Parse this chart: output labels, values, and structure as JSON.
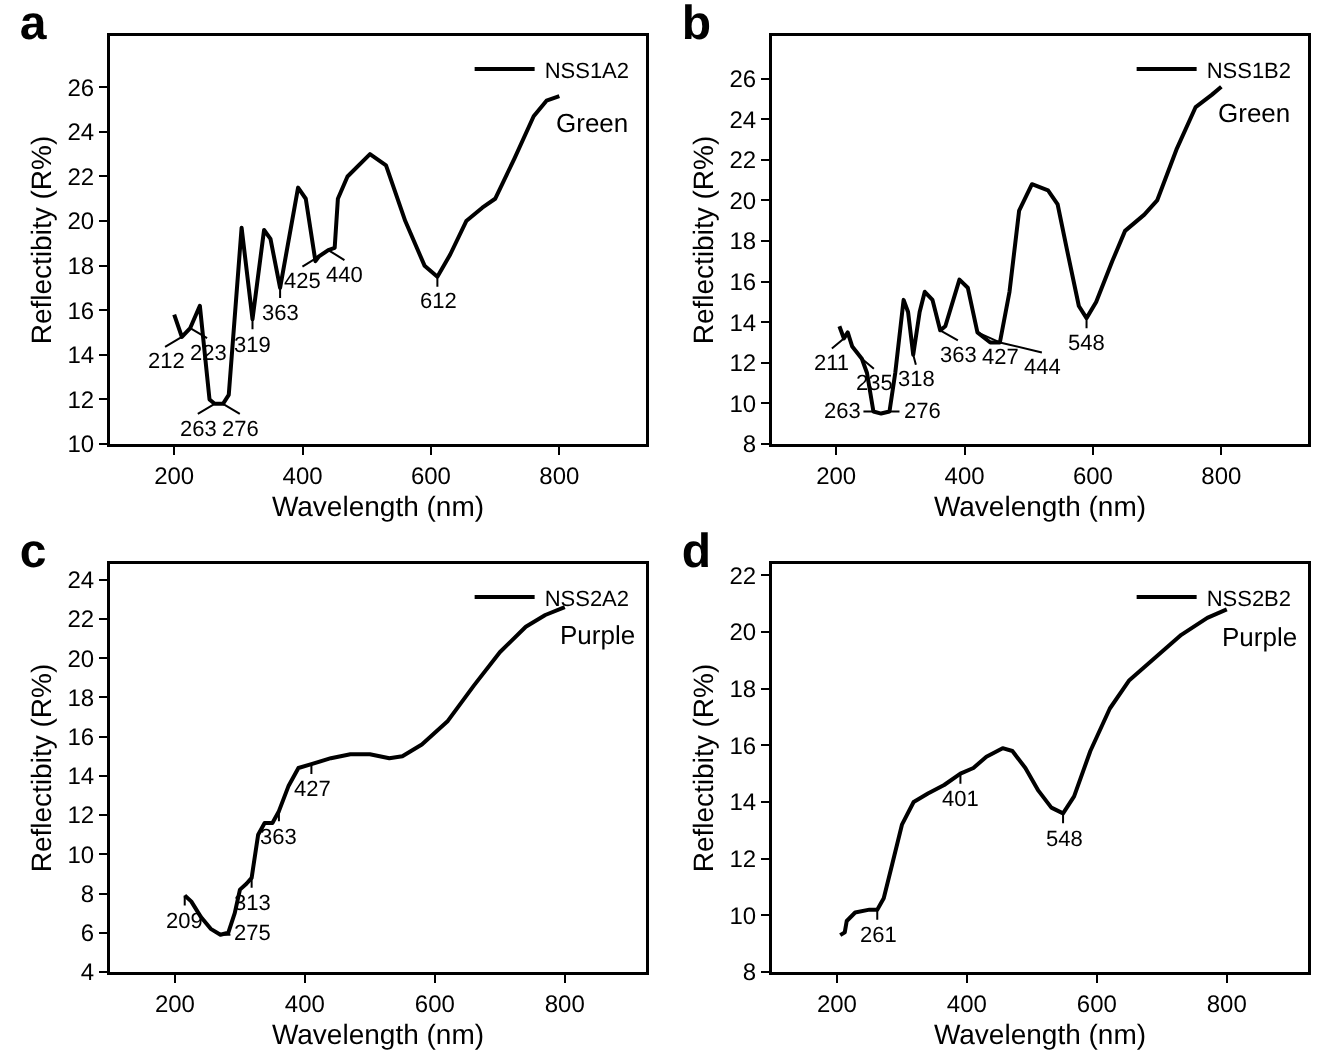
{
  "chart_data": [
    {
      "type": "line",
      "title": "a",
      "xlabel": "Wavelength (nm)",
      "ylabel": "Reflectibity (R%)",
      "legend": "top right",
      "marker": "none",
      "line_style": "solid",
      "grid": false,
      "xlim": [
        100,
        935
      ],
      "xticks": [
        200,
        400,
        600,
        800
      ],
      "ylim": [
        10,
        28.3
      ],
      "yticks": [
        10,
        12,
        14,
        16,
        18,
        20,
        22,
        24,
        26
      ],
      "x": [
        200,
        212,
        225,
        240,
        255,
        263,
        276,
        285,
        305,
        322,
        340,
        350,
        365,
        393,
        405,
        420,
        425,
        440,
        450,
        455,
        470,
        505,
        530,
        560,
        590,
        610,
        630,
        655,
        680,
        700,
        730,
        760,
        780,
        800
      ],
      "series": [
        {
          "name": "NSS1A2",
          "color": "#000000",
          "values": [
            15.8,
            14.8,
            15.2,
            16.2,
            12.0,
            11.8,
            11.8,
            12.2,
            19.7,
            15.6,
            19.6,
            19.2,
            17.0,
            21.5,
            21.0,
            18.2,
            18.4,
            18.7,
            18.8,
            21.0,
            22.0,
            23.0,
            22.5,
            20.0,
            18.0,
            17.5,
            18.5,
            20.0,
            20.6,
            21.0,
            22.8,
            24.7,
            25.4,
            25.6
          ]
        }
      ],
      "annotations": [
        {
          "text": "212",
          "x": 212,
          "y": 14.8
        },
        {
          "text": "223",
          "x": 225,
          "y": 15.2
        },
        {
          "text": "263",
          "x": 263,
          "y": 11.8
        },
        {
          "text": "276",
          "x": 276,
          "y": 11.8
        },
        {
          "text": "319",
          "x": 322,
          "y": 15.6
        },
        {
          "text": "363",
          "x": 365,
          "y": 17.0
        },
        {
          "text": "425",
          "x": 425,
          "y": 18.4
        },
        {
          "text": "440",
          "x": 440,
          "y": 18.7
        },
        {
          "text": "612",
          "x": 610,
          "y": 17.5
        },
        {
          "text": "Green",
          "x": 800,
          "y": 25.6
        }
      ]
    },
    {
      "type": "line",
      "title": "b",
      "xlabel": "Wavelength (nm)",
      "ylabel": "Reflectibity (R%)",
      "legend": "top right",
      "marker": "none",
      "line_style": "solid",
      "grid": false,
      "xlim": [
        100,
        935
      ],
      "xticks": [
        200,
        400,
        600,
        800
      ],
      "ylim": [
        8,
        28.1
      ],
      "yticks": [
        8,
        10,
        12,
        14,
        16,
        18,
        20,
        22,
        24,
        26
      ],
      "x": [
        205,
        212,
        218,
        225,
        240,
        248,
        258,
        270,
        283,
        292,
        305,
        312,
        320,
        330,
        338,
        350,
        362,
        370,
        392,
        405,
        420,
        440,
        455,
        470,
        485,
        505,
        530,
        545,
        560,
        578,
        590,
        605,
        630,
        650,
        680,
        700,
        730,
        760,
        785,
        800
      ],
      "series": [
        {
          "name": "NSS1B2",
          "color": "#000000",
          "values": [
            13.8,
            13.2,
            13.5,
            12.8,
            12.2,
            11.5,
            9.6,
            9.5,
            9.6,
            11.5,
            15.1,
            14.5,
            12.4,
            14.5,
            15.5,
            15.1,
            13.6,
            13.8,
            16.1,
            15.7,
            13.5,
            13.0,
            13.0,
            15.5,
            19.5,
            20.8,
            20.5,
            19.8,
            17.5,
            14.8,
            14.2,
            15.0,
            17.0,
            18.5,
            19.3,
            20.0,
            22.5,
            24.6,
            25.2,
            25.6
          ]
        }
      ],
      "annotations": [
        {
          "text": "211",
          "x": 212,
          "y": 13.2
        },
        {
          "text": "235",
          "x": 240,
          "y": 12.2
        },
        {
          "text": "263",
          "x": 258,
          "y": 9.6
        },
        {
          "text": "276",
          "x": 283,
          "y": 9.6
        },
        {
          "text": "318",
          "x": 320,
          "y": 12.4
        },
        {
          "text": "363",
          "x": 362,
          "y": 13.6
        },
        {
          "text": "427",
          "x": 420,
          "y": 13.5
        },
        {
          "text": "444",
          "x": 455,
          "y": 13.0
        },
        {
          "text": "548",
          "x": 590,
          "y": 14.2
        },
        {
          "text": "Green",
          "x": 800,
          "y": 25.6
        }
      ]
    },
    {
      "type": "line",
      "title": "c",
      "xlabel": "Wavelength (nm)",
      "ylabel": "Reflectibity (R%)",
      "legend": "top right",
      "marker": "none",
      "line_style": "solid",
      "grid": false,
      "xlim": [
        100,
        925
      ],
      "xticks": [
        200,
        400,
        600,
        800
      ],
      "ylim": [
        4,
        24.8
      ],
      "yticks": [
        4,
        6,
        8,
        10,
        12,
        14,
        16,
        18,
        20,
        22,
        24
      ],
      "x": [
        215,
        225,
        240,
        255,
        270,
        282,
        292,
        300,
        310,
        318,
        328,
        338,
        350,
        360,
        375,
        390,
        410,
        440,
        470,
        500,
        530,
        550,
        580,
        620,
        660,
        700,
        740,
        770,
        800
      ],
      "series": [
        {
          "name": "NSS2A2",
          "color": "#000000",
          "values": [
            7.9,
            7.6,
            6.8,
            6.2,
            5.9,
            6.0,
            7.0,
            8.2,
            8.5,
            8.8,
            11.0,
            11.6,
            11.6,
            12.2,
            13.5,
            14.4,
            14.6,
            14.9,
            15.1,
            15.1,
            14.9,
            15.0,
            15.6,
            16.8,
            18.6,
            20.3,
            21.6,
            22.2,
            22.6
          ]
        }
      ],
      "annotations": [
        {
          "text": "209",
          "x": 215,
          "y": 7.9
        },
        {
          "text": "275",
          "x": 270,
          "y": 5.9
        },
        {
          "text": "313",
          "x": 318,
          "y": 8.8
        },
        {
          "text": "363",
          "x": 360,
          "y": 12.2
        },
        {
          "text": "427",
          "x": 410,
          "y": 14.6
        },
        {
          "text": "Purple",
          "x": 800,
          "y": 22.6
        }
      ]
    },
    {
      "type": "line",
      "title": "d",
      "xlabel": "Wavelength (nm)",
      "ylabel": "Reflectibity (R%)",
      "legend": "top right",
      "marker": "none",
      "line_style": "solid",
      "grid": false,
      "xlim": [
        100,
        925
      ],
      "xticks": [
        200,
        400,
        600,
        800
      ],
      "ylim": [
        8,
        22.4
      ],
      "yticks": [
        8,
        10,
        12,
        14,
        16,
        18,
        20,
        22
      ],
      "x": [
        205,
        212,
        215,
        228,
        250,
        262,
        272,
        285,
        300,
        318,
        340,
        365,
        390,
        410,
        430,
        455,
        470,
        490,
        510,
        530,
        548,
        565,
        590,
        620,
        650,
        690,
        730,
        770,
        800
      ],
      "series": [
        {
          "name": "NSS2B2",
          "color": "#000000",
          "values": [
            9.3,
            9.4,
            9.8,
            10.1,
            10.2,
            10.2,
            10.6,
            11.8,
            13.2,
            14.0,
            14.3,
            14.6,
            15.0,
            15.2,
            15.6,
            15.9,
            15.8,
            15.2,
            14.4,
            13.8,
            13.6,
            14.2,
            15.8,
            17.3,
            18.3,
            19.1,
            19.9,
            20.5,
            20.8
          ]
        }
      ],
      "annotations": [
        {
          "text": "261",
          "x": 262,
          "y": 10.2
        },
        {
          "text": "401",
          "x": 390,
          "y": 15.0
        },
        {
          "text": "548",
          "x": 548,
          "y": 13.6
        },
        {
          "text": "Purple",
          "x": 800,
          "y": 20.8
        }
      ]
    }
  ]
}
